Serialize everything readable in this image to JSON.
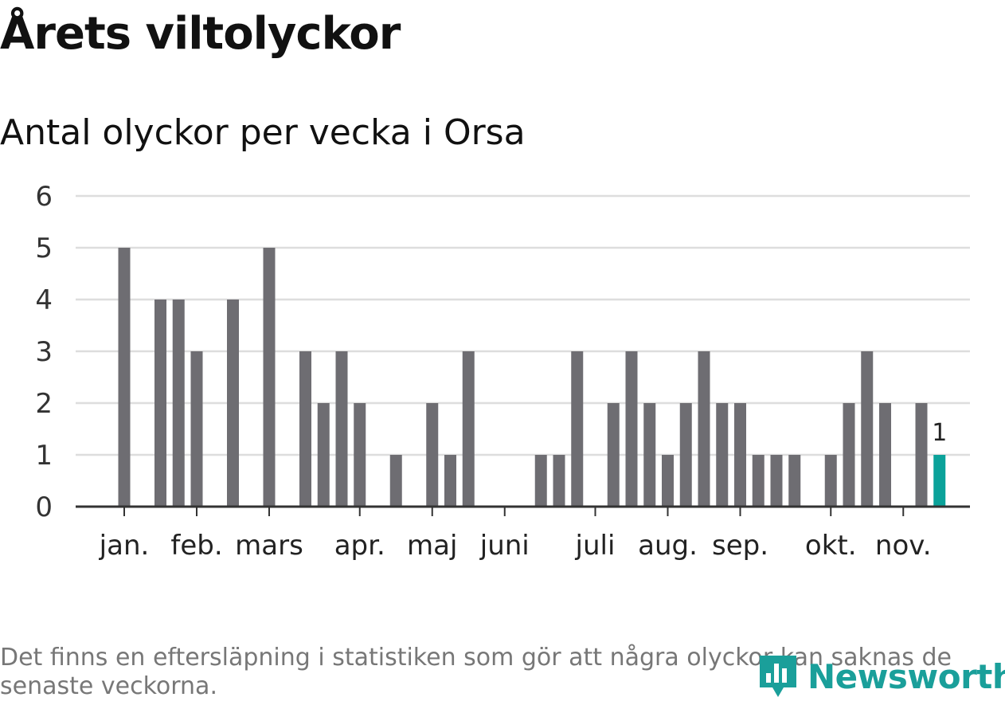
{
  "header": {
    "title": "Årets viltolyckor",
    "subtitle": "Antal olyckor per vecka i Orsa"
  },
  "footnote": "Det finns en eftersläpning i statistiken som gör att några olyckor kan saknas de senaste veckorna.",
  "logo": {
    "text": "Newsworthy"
  },
  "colors": {
    "bar": "#6e6d72",
    "highlight": "#0ba29a",
    "grid": "#dddddd",
    "axis": "#333333",
    "brand": "#1a9f9a"
  },
  "chart_data": {
    "type": "bar",
    "ylim": [
      0,
      6
    ],
    "yticks": [
      "0",
      "1",
      "2",
      "3",
      "4",
      "5",
      "6"
    ],
    "grid": true,
    "weeks": [
      1,
      2,
      3,
      4,
      5,
      6,
      7,
      8,
      9,
      10,
      11,
      12,
      13,
      14,
      15,
      16,
      17,
      18,
      19,
      20,
      21,
      22,
      23,
      24,
      25,
      26,
      27,
      28,
      29,
      30,
      31,
      32,
      33,
      34,
      35,
      36,
      37,
      38,
      39,
      40,
      41,
      42,
      43,
      44,
      45,
      46
    ],
    "values": [
      5,
      0,
      4,
      4,
      3,
      0,
      4,
      0,
      5,
      0,
      3,
      2,
      3,
      2,
      0,
      1,
      0,
      2,
      1,
      3,
      0,
      0,
      0,
      1,
      1,
      3,
      0,
      2,
      3,
      2,
      1,
      2,
      3,
      2,
      2,
      1,
      1,
      1,
      0,
      1,
      2,
      3,
      2,
      0,
      2,
      1
    ],
    "highlight_index": 45,
    "highlight_label": "1",
    "month_labels": [
      {
        "label": "jan.",
        "week": 1
      },
      {
        "label": "feb.",
        "week": 5
      },
      {
        "label": "mars",
        "week": 9
      },
      {
        "label": "apr.",
        "week": 14
      },
      {
        "label": "maj",
        "week": 18
      },
      {
        "label": "juni",
        "week": 22
      },
      {
        "label": "juli",
        "week": 27
      },
      {
        "label": "aug.",
        "week": 31
      },
      {
        "label": "sep.",
        "week": 35
      },
      {
        "label": "okt.",
        "week": 40
      },
      {
        "label": "nov.",
        "week": 44
      }
    ]
  }
}
